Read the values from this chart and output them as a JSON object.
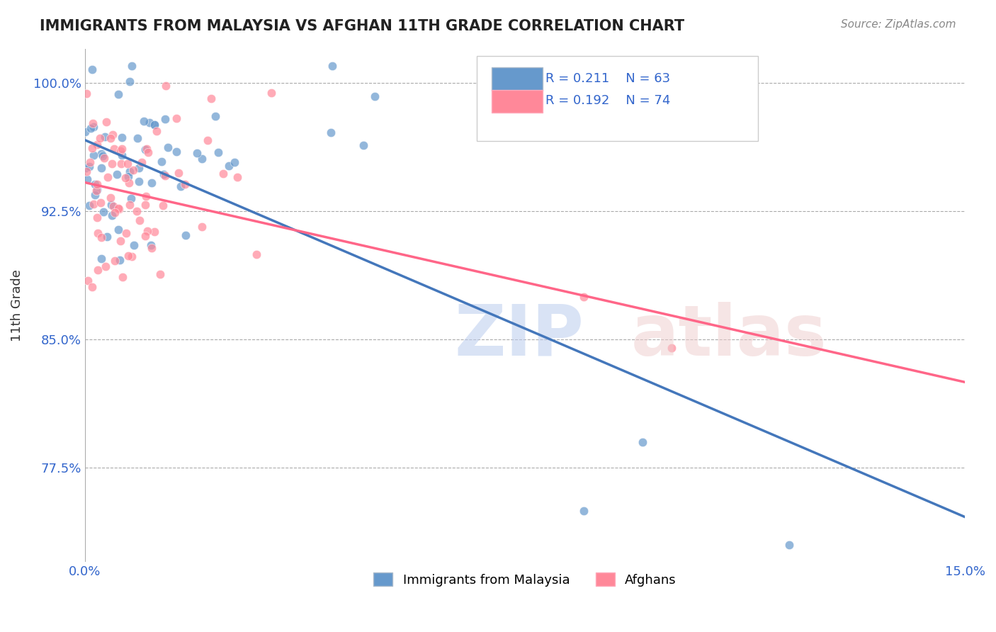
{
  "title": "IMMIGRANTS FROM MALAYSIA VS AFGHAN 11TH GRADE CORRELATION CHART",
  "source_text": "Source: ZipAtlas.com",
  "ylabel": "11th Grade",
  "xlim": [
    0.0,
    0.15
  ],
  "ylim": [
    0.72,
    1.02
  ],
  "xtick_labels": [
    "0.0%",
    "15.0%"
  ],
  "xtick_vals": [
    0.0,
    0.15
  ],
  "ytick_labels": [
    "77.5%",
    "85.0%",
    "92.5%",
    "100.0%"
  ],
  "ytick_vals": [
    0.775,
    0.85,
    0.925,
    1.0
  ],
  "legend_r1": "R = 0.211",
  "legend_n1": "N = 63",
  "legend_r2": "R = 0.192",
  "legend_n2": "N = 74",
  "color_malaysia": "#6699CC",
  "color_afghan": "#FF8899",
  "line_color_malaysia": "#4477BB",
  "line_color_afghan": "#FF6688",
  "label_malaysia": "Immigrants from Malaysia",
  "label_afghan": "Afghans",
  "tick_color": "#3366CC",
  "title_color": "#222222",
  "source_color": "#888888",
  "ylabel_color": "#333333"
}
